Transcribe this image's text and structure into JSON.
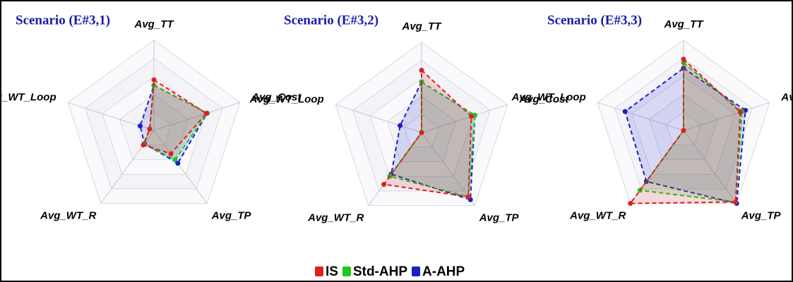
{
  "legend": [
    {
      "name": "IS",
      "color": "#e01e1e"
    },
    {
      "name": "Std-AHP",
      "color": "#1ec81e"
    },
    {
      "name": "A-AHP",
      "color": "#1e1ec8"
    }
  ],
  "chart_data": [
    {
      "type": "radar",
      "title": "Scenario (E#3,1)",
      "axes": [
        "Avg_TT",
        "Avg_Cost",
        "Avg_TP",
        "Avg_WT_R",
        "Avg_WT_Loop"
      ],
      "rlim": [
        0,
        1
      ],
      "rticks": [
        0.2,
        0.4,
        0.6,
        0.8,
        1
      ],
      "series": [
        {
          "values": [
            0.56,
            0.61,
            0.32,
            0.2,
            0.05
          ]
        },
        {
          "values": [
            0.5,
            0.62,
            0.4,
            0.19,
            0.05
          ]
        },
        {
          "values": [
            0.5,
            0.62,
            0.45,
            0.18,
            0.16
          ]
        }
      ]
    },
    {
      "type": "radar",
      "title": "Scenario (E#3,2)",
      "axes": [
        "Avg_TT",
        "Avg_Cost",
        "Avg_TP",
        "Avg_WT_R",
        "Avg_WT_Loop"
      ],
      "rlim": [
        0,
        1
      ],
      "rticks": [
        0.2,
        0.4,
        0.6,
        0.8,
        1
      ],
      "series": [
        {
          "values": [
            0.69,
            0.58,
            0.88,
            0.71,
            0
          ]
        },
        {
          "values": [
            0.56,
            0.62,
            0.88,
            0.6,
            0
          ]
        },
        {
          "values": [
            0.56,
            0.62,
            0.92,
            0.57,
            0.25
          ]
        }
      ]
    },
    {
      "type": "radar",
      "title": "Scenario (E#3,3)",
      "axes": [
        "Avg_TT",
        "Avg_Cost",
        "Avg_TP",
        "Avg_WT_R",
        "Avg_WT_Loop"
      ],
      "rlim": [
        0,
        1
      ],
      "rticks": [
        0.2,
        0.4,
        0.6,
        0.8,
        1
      ],
      "series": [
        {
          "values": [
            0.79,
            0.66,
            0.98,
            1.0,
            0
          ]
        },
        {
          "values": [
            0.75,
            0.68,
            0.98,
            0.82,
            0
          ]
        },
        {
          "values": [
            0.69,
            0.72,
            1.0,
            0.7,
            0.68
          ]
        }
      ]
    }
  ]
}
